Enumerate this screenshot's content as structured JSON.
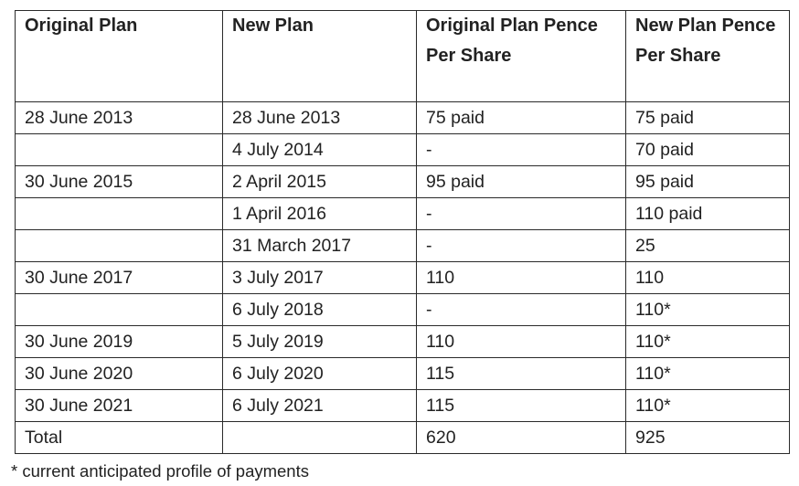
{
  "table": {
    "headers": [
      "Original Plan",
      "New Plan",
      "Original Plan Pence Per Share",
      "New Plan Pence Per Share"
    ],
    "rows": [
      [
        "28 June 2013",
        "28 June 2013",
        "75 paid",
        "75 paid"
      ],
      [
        "",
        "4 July 2014",
        "-",
        "70 paid"
      ],
      [
        "30 June 2015",
        "2 April 2015",
        "95 paid",
        "95 paid"
      ],
      [
        "",
        "1 April 2016",
        "-",
        "110 paid"
      ],
      [
        "",
        "31 March 2017",
        "-",
        "25"
      ],
      [
        "30 June 2017",
        "3 July 2017",
        "110",
        "110"
      ],
      [
        "",
        "6 July 2018",
        "-",
        "110*"
      ],
      [
        "30 June 2019",
        "5 July 2019",
        "110",
        "110*"
      ],
      [
        "30 June 2020",
        "6 July 2020",
        "115",
        "110*"
      ],
      [
        "30 June 2021",
        "6 July 2021",
        "115",
        "110*"
      ],
      [
        "Total",
        "",
        "620",
        "925"
      ]
    ]
  },
  "footnote": "* current anticipated profile of payments"
}
